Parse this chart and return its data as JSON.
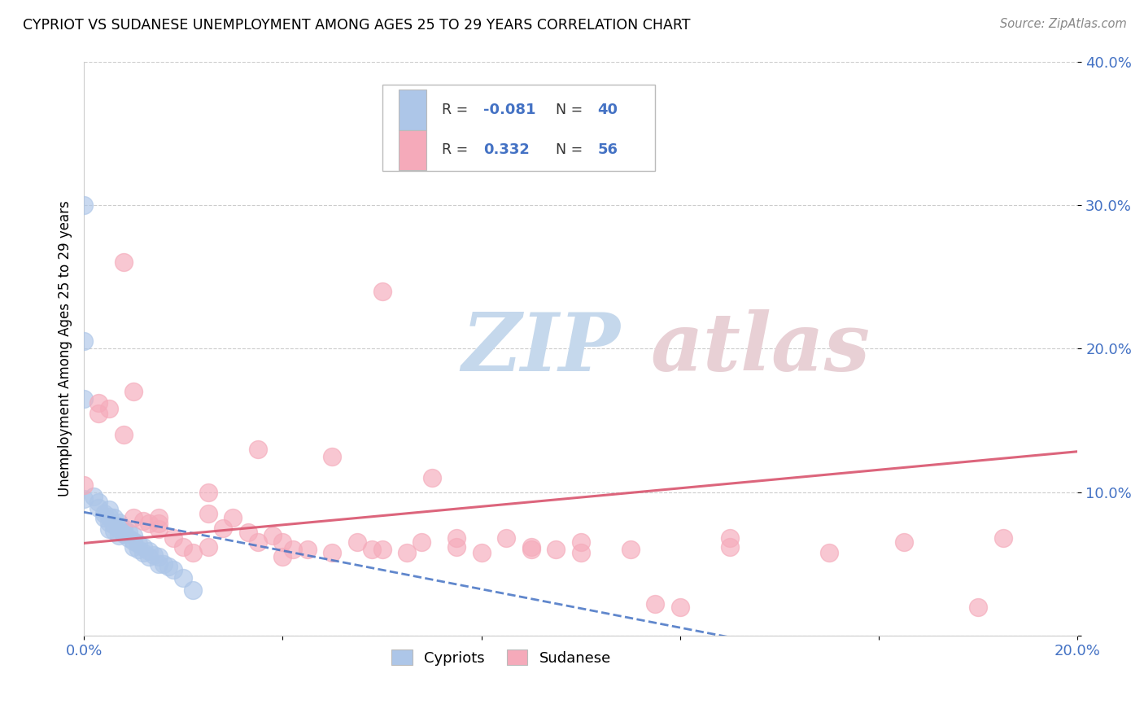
{
  "title": "CYPRIOT VS SUDANESE UNEMPLOYMENT AMONG AGES 25 TO 29 YEARS CORRELATION CHART",
  "source": "Source: ZipAtlas.com",
  "ylabel": "Unemployment Among Ages 25 to 29 years",
  "xlim": [
    0.0,
    0.2
  ],
  "ylim": [
    0.0,
    0.4
  ],
  "xticks": [
    0.0,
    0.04,
    0.08,
    0.12,
    0.16,
    0.2
  ],
  "yticks": [
    0.0,
    0.1,
    0.2,
    0.3,
    0.4
  ],
  "cypriot_color": "#adc6e8",
  "sudanese_color": "#f5aaba",
  "cypriot_line_color": "#4472c4",
  "sudanese_line_color": "#d9546e",
  "watermark_zip_color": "#c8d8e8",
  "watermark_atlas_color": "#d8c8c8",
  "legend_R_cyp": "-0.081",
  "legend_N_cyp": "40",
  "legend_R_sud": "0.332",
  "legend_N_sud": "56",
  "cyp_x": [
    0.0,
    0.0,
    0.0,
    0.0,
    0.002,
    0.003,
    0.003,
    0.004,
    0.004,
    0.005,
    0.005,
    0.005,
    0.005,
    0.006,
    0.006,
    0.006,
    0.007,
    0.007,
    0.007,
    0.008,
    0.008,
    0.009,
    0.009,
    0.01,
    0.01,
    0.01,
    0.011,
    0.011,
    0.012,
    0.012,
    0.013,
    0.013,
    0.014,
    0.015,
    0.015,
    0.016,
    0.017,
    0.018,
    0.02,
    0.022
  ],
  "cyp_y": [
    0.3,
    0.205,
    0.165,
    0.095,
    0.097,
    0.093,
    0.089,
    0.085,
    0.082,
    0.088,
    0.083,
    0.079,
    0.074,
    0.082,
    0.077,
    0.073,
    0.079,
    0.074,
    0.07,
    0.075,
    0.071,
    0.072,
    0.068,
    0.07,
    0.066,
    0.062,
    0.064,
    0.06,
    0.062,
    0.058,
    0.059,
    0.055,
    0.056,
    0.055,
    0.05,
    0.05,
    0.048,
    0.046,
    0.04,
    0.032
  ],
  "sud_x": [
    0.0,
    0.003,
    0.005,
    0.008,
    0.01,
    0.01,
    0.012,
    0.013,
    0.015,
    0.015,
    0.018,
    0.02,
    0.022,
    0.025,
    0.025,
    0.028,
    0.03,
    0.033,
    0.035,
    0.038,
    0.04,
    0.04,
    0.042,
    0.045,
    0.05,
    0.055,
    0.058,
    0.06,
    0.065,
    0.068,
    0.07,
    0.075,
    0.08,
    0.085,
    0.09,
    0.095,
    0.1,
    0.11,
    0.12,
    0.13,
    0.003,
    0.008,
    0.015,
    0.025,
    0.035,
    0.05,
    0.06,
    0.075,
    0.09,
    0.1,
    0.115,
    0.13,
    0.15,
    0.165,
    0.18,
    0.185
  ],
  "sud_y": [
    0.105,
    0.162,
    0.158,
    0.26,
    0.17,
    0.082,
    0.08,
    0.078,
    0.078,
    0.074,
    0.068,
    0.062,
    0.058,
    0.062,
    0.1,
    0.075,
    0.082,
    0.072,
    0.065,
    0.07,
    0.055,
    0.065,
    0.06,
    0.06,
    0.058,
    0.065,
    0.06,
    0.06,
    0.058,
    0.065,
    0.11,
    0.062,
    0.058,
    0.068,
    0.062,
    0.06,
    0.065,
    0.06,
    0.02,
    0.068,
    0.155,
    0.14,
    0.082,
    0.085,
    0.13,
    0.125,
    0.24,
    0.068,
    0.06,
    0.058,
    0.022,
    0.062,
    0.058,
    0.065,
    0.02,
    0.068
  ]
}
